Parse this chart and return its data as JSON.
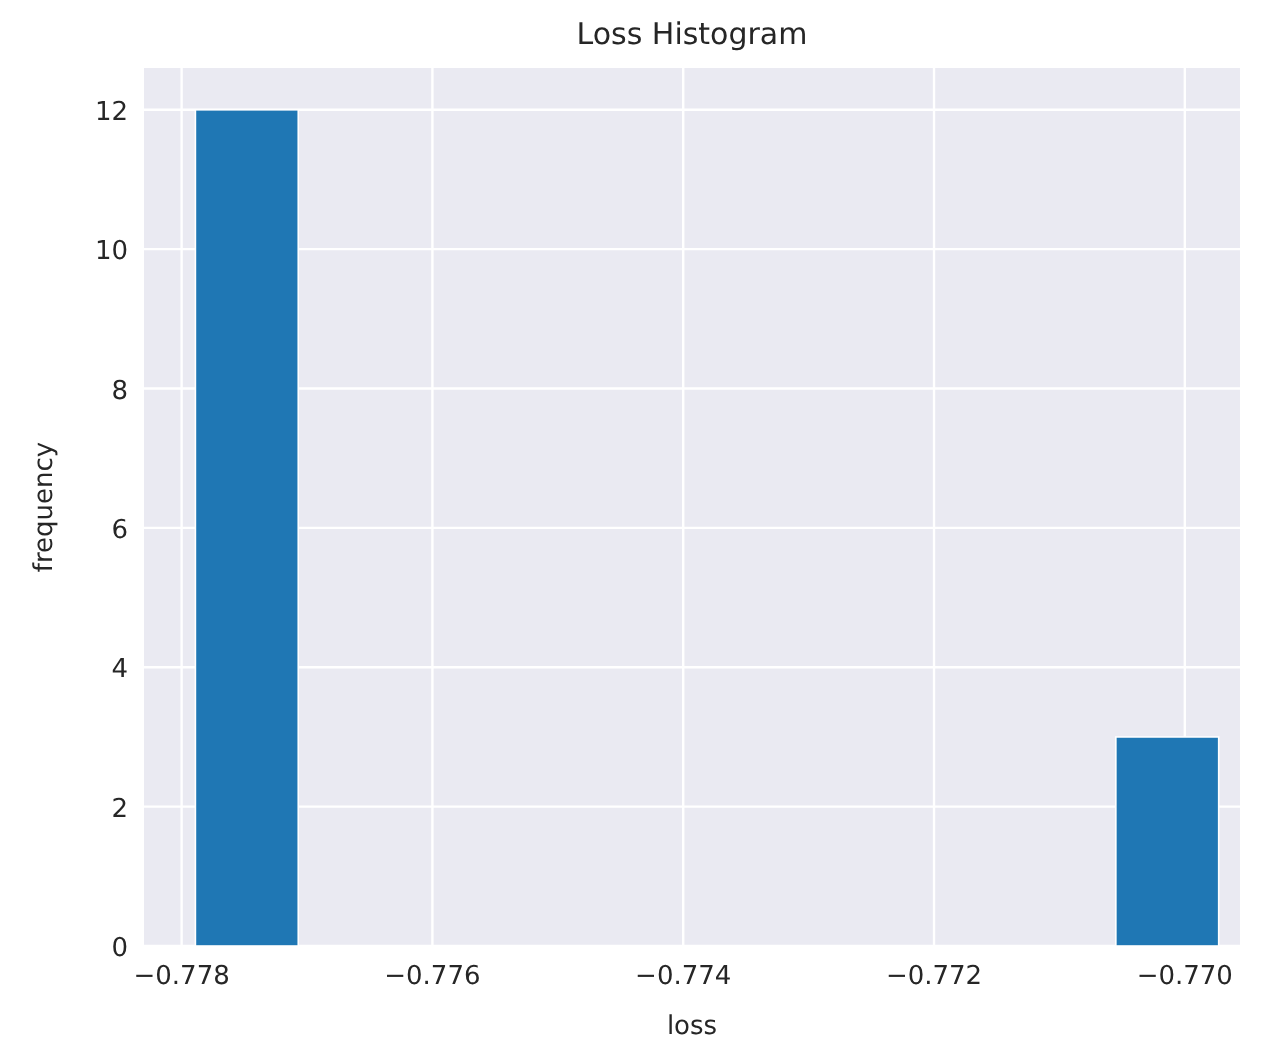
{
  "chart_data": {
    "type": "histogram",
    "title": "Loss Histogram",
    "xlabel": "loss",
    "ylabel": "frequency",
    "bins": [
      -0.77789,
      -0.77707,
      -0.77055,
      -0.76973
    ],
    "values": [
      12,
      0,
      3
    ],
    "color": "#1f77b4",
    "xlim": [
      -0.7783,
      -0.76956
    ],
    "ylim": [
      0,
      12.6
    ],
    "xticks": [
      {
        "value": -0.778,
        "label": "−0.778"
      },
      {
        "value": -0.776,
        "label": "−0.776"
      },
      {
        "value": -0.774,
        "label": "−0.774"
      },
      {
        "value": -0.772,
        "label": "−0.772"
      },
      {
        "value": -0.77,
        "label": "−0.770"
      }
    ],
    "yticks": [
      0,
      2,
      4,
      6,
      8,
      10,
      12
    ],
    "grid": true
  }
}
